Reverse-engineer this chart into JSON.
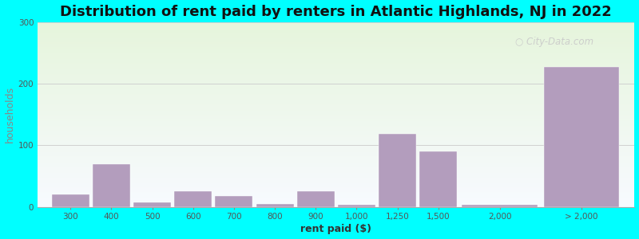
{
  "title": "Distribution of rent paid by renters in Atlantic Highlands, NJ in 2022",
  "xlabel": "rent paid ($)",
  "ylabel": "households",
  "bar_labels": [
    "300",
    "400",
    "500",
    "600",
    "700",
    "800",
    "900",
    "1,000",
    "1,250",
    "1,500",
    "2,000",
    "> 2,000"
  ],
  "bar_values": [
    20,
    70,
    7,
    25,
    18,
    5,
    25,
    3,
    118,
    90,
    3,
    228
  ],
  "bar_color": "#b39dbd",
  "background_color": "#00ffff",
  "grid_color": "#d0d0d0",
  "ylim": [
    0,
    300
  ],
  "yticks": [
    0,
    100,
    200,
    300
  ],
  "title_fontsize": 13,
  "axis_label_fontsize": 9,
  "tick_fontsize": 7.5,
  "watermark_text": "City-Data.com",
  "watermark_color": "#c8c8c8",
  "x_positions": [
    0,
    1,
    2,
    3,
    4,
    5,
    6,
    7,
    8,
    9,
    10,
    12
  ],
  "bar_widths": [
    1,
    1,
    1,
    1,
    1,
    1,
    1,
    1,
    1,
    1,
    2,
    2
  ]
}
